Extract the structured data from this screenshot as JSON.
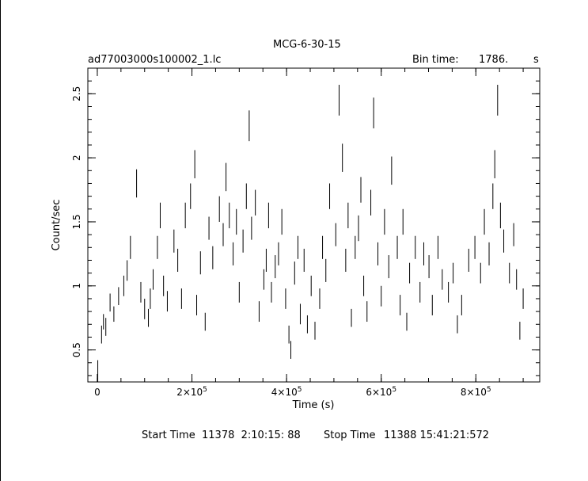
{
  "header": {
    "title": "MCG-6-30-15",
    "filename": "ad77003000s100002_1.lc",
    "bin_label": "Bin time:",
    "bin_value": "1786.",
    "bin_unit": "s"
  },
  "footer": {
    "start_label": "Start Time",
    "start_value": "11378  2:10:15: 88",
    "stop_label": "Stop Time",
    "stop_value": "11388 15:41:21:572"
  },
  "colors": {
    "ink": "#000000",
    "background": "#ffffff"
  },
  "chart_data": {
    "type": "scatter",
    "style": "error-bars",
    "title": "MCG-6-30-15",
    "xlabel": "Time (s)",
    "ylabel": "Count/sec",
    "xlim": [
      -20000,
      935000
    ],
    "ylim": [
      0.25,
      2.7
    ],
    "xticks": [
      {
        "value": 0,
        "label": "0"
      },
      {
        "value": 200000,
        "label": "2×10^5"
      },
      {
        "value": 400000,
        "label": "4×10^5"
      },
      {
        "value": 600000,
        "label": "6×10^5"
      },
      {
        "value": 800000,
        "label": "8×10^5"
      }
    ],
    "yticks": [
      {
        "value": 0.5,
        "label": "0.5"
      },
      {
        "value": 1,
        "label": "1"
      },
      {
        "value": 1.5,
        "label": "1.5"
      },
      {
        "value": 2,
        "label": "2"
      },
      {
        "value": 2.5,
        "label": "2.5"
      }
    ],
    "x_minor_step": 50000,
    "y_minor_step": 0.1,
    "grid": false,
    "series": [
      {
        "x": [
          1000,
          9000,
          13000,
          18000,
          27000,
          35000,
          45000,
          56000,
          63000,
          70000,
          83000,
          92000,
          100000,
          108000,
          112000,
          118000,
          127000,
          133000,
          140000,
          148000,
          162000,
          170000,
          178000,
          186000,
          197000,
          206000,
          210000,
          218000,
          228000,
          236000,
          244000,
          258000,
          266000,
          272000,
          279000,
          287000,
          294000,
          300000,
          308000,
          315000,
          321000,
          326000,
          334000,
          342000,
          352000,
          357000,
          362000,
          368000,
          376000,
          383000,
          390000,
          398000,
          405000,
          409000,
          417000,
          424000,
          429000,
          437000,
          444000,
          452000,
          460000,
          470000,
          476000,
          483000,
          491000,
          504000,
          511000,
          518000,
          525000,
          530000,
          537000,
          545000,
          552000,
          557000,
          563000,
          570000,
          578000,
          584000,
          593000,
          600000,
          607000,
          616000,
          622000,
          634000,
          640000,
          646000,
          654000,
          660000,
          672000,
          682000,
          690000,
          701000,
          708000,
          720000,
          729000,
          742000,
          752000,
          761000,
          770000,
          785000,
          798000,
          810000,
          818000,
          828000,
          836000,
          840000,
          846000,
          852000,
          859000,
          871000,
          880000,
          886000,
          893000,
          900000
        ],
        "y": [
          0.33,
          0.62,
          0.72,
          0.68,
          0.87,
          0.78,
          0.92,
          1.0,
          1.12,
          1.3,
          1.8,
          0.95,
          0.82,
          0.75,
          0.9,
          1.05,
          1.3,
          1.55,
          1.0,
          0.88,
          1.35,
          1.2,
          0.9,
          1.55,
          1.7,
          1.95,
          0.85,
          1.18,
          0.72,
          1.45,
          1.22,
          1.6,
          1.4,
          1.85,
          1.55,
          1.25,
          1.5,
          0.95,
          1.35,
          1.7,
          2.25,
          1.45,
          1.65,
          0.8,
          1.05,
          1.2,
          1.55,
          0.95,
          1.15,
          1.25,
          1.5,
          0.9,
          0.62,
          0.5,
          1.1,
          1.3,
          0.78,
          1.2,
          0.7,
          1.0,
          0.65,
          0.9,
          1.3,
          1.12,
          1.7,
          1.4,
          2.45,
          2.0,
          1.2,
          1.55,
          0.75,
          1.3,
          1.45,
          1.75,
          1.0,
          0.8,
          1.65,
          2.35,
          1.25,
          0.92,
          1.5,
          1.15,
          1.9,
          1.3,
          0.85,
          1.5,
          0.72,
          1.1,
          1.3,
          0.95,
          1.25,
          1.15,
          0.85,
          1.3,
          1.05,
          0.95,
          1.1,
          0.7,
          0.85,
          1.2,
          1.3,
          1.1,
          1.5,
          1.25,
          1.7,
          1.95,
          2.45,
          1.55,
          1.35,
          1.1,
          1.4,
          1.05,
          0.65,
          0.9
        ],
        "err": [
          0.09,
          0.07,
          0.06,
          0.07,
          0.07,
          0.06,
          0.07,
          0.08,
          0.08,
          0.09,
          0.11,
          0.08,
          0.08,
          0.07,
          0.08,
          0.08,
          0.09,
          0.1,
          0.08,
          0.08,
          0.09,
          0.09,
          0.08,
          0.1,
          0.1,
          0.11,
          0.08,
          0.09,
          0.07,
          0.09,
          0.09,
          0.1,
          0.09,
          0.11,
          0.1,
          0.09,
          0.1,
          0.08,
          0.09,
          0.1,
          0.12,
          0.09,
          0.1,
          0.08,
          0.08,
          0.09,
          0.1,
          0.08,
          0.09,
          0.09,
          0.1,
          0.08,
          0.07,
          0.07,
          0.09,
          0.09,
          0.08,
          0.09,
          0.07,
          0.08,
          0.07,
          0.08,
          0.09,
          0.09,
          0.1,
          0.09,
          0.12,
          0.11,
          0.09,
          0.1,
          0.07,
          0.09,
          0.1,
          0.1,
          0.08,
          0.08,
          0.1,
          0.12,
          0.09,
          0.08,
          0.1,
          0.09,
          0.11,
          0.09,
          0.08,
          0.1,
          0.07,
          0.08,
          0.09,
          0.08,
          0.09,
          0.09,
          0.08,
          0.09,
          0.08,
          0.08,
          0.08,
          0.07,
          0.08,
          0.09,
          0.09,
          0.08,
          0.1,
          0.09,
          0.1,
          0.11,
          0.12,
          0.1,
          0.09,
          0.08,
          0.09,
          0.08,
          0.07,
          0.08
        ]
      }
    ]
  }
}
